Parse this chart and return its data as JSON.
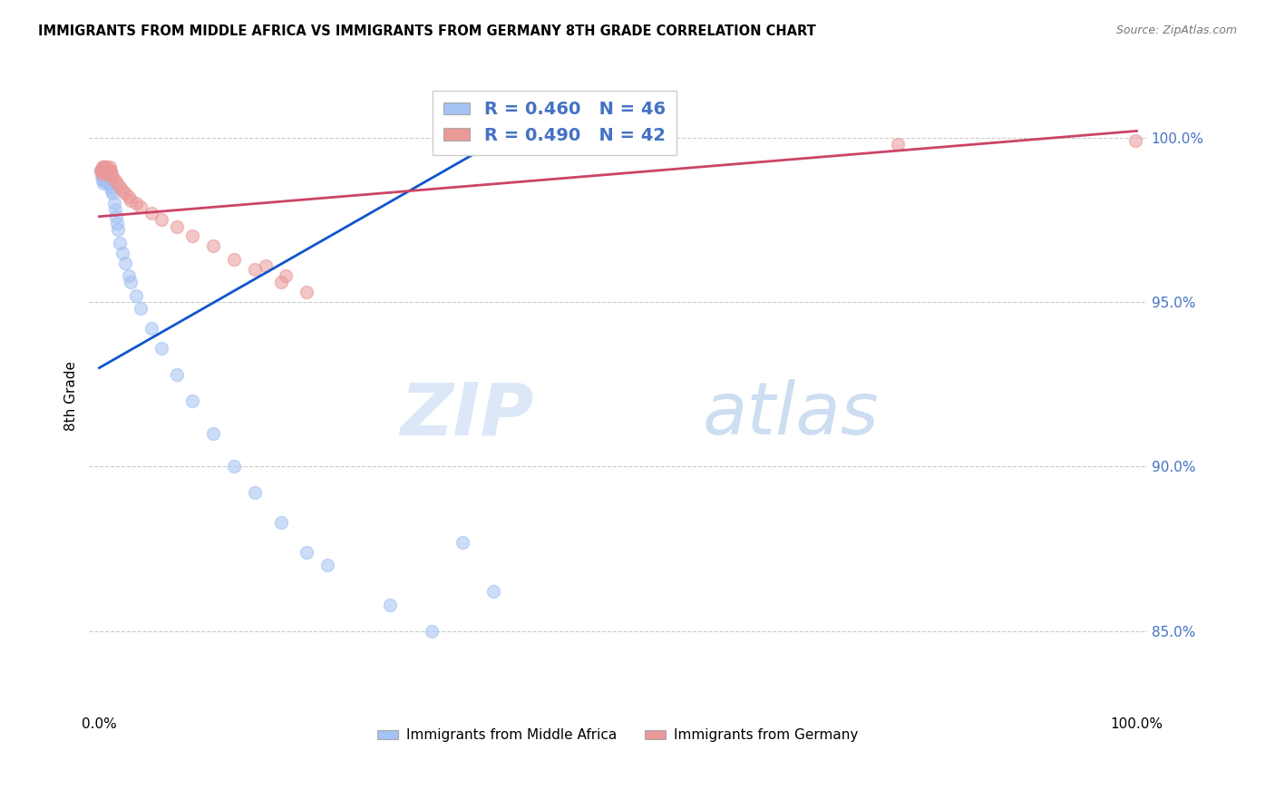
{
  "title": "IMMIGRANTS FROM MIDDLE AFRICA VS IMMIGRANTS FROM GERMANY 8TH GRADE CORRELATION CHART",
  "source": "Source: ZipAtlas.com",
  "ylabel": "8th Grade",
  "y_tick_labels": [
    "85.0%",
    "90.0%",
    "95.0%",
    "100.0%"
  ],
  "y_tick_values": [
    0.85,
    0.9,
    0.95,
    1.0
  ],
  "xlim": [
    -0.01,
    1.01
  ],
  "ylim": [
    0.825,
    1.018
  ],
  "legend_blue_label": "Immigrants from Middle Africa",
  "legend_pink_label": "Immigrants from Germany",
  "R_blue": 0.46,
  "N_blue": 46,
  "R_pink": 0.49,
  "N_pink": 42,
  "blue_color": "#a4c2f4",
  "pink_color": "#ea9999",
  "blue_line_color": "#1155cc",
  "pink_line_color": "#cc4466",
  "blue_scatter_x": [
    0.001,
    0.002,
    0.003,
    0.003,
    0.004,
    0.004,
    0.005,
    0.005,
    0.006,
    0.007,
    0.007,
    0.008,
    0.008,
    0.009,
    0.009,
    0.01,
    0.01,
    0.011,
    0.012,
    0.013,
    0.014,
    0.015,
    0.016,
    0.017,
    0.018,
    0.02,
    0.022,
    0.025,
    0.028,
    0.03,
    0.035,
    0.04,
    0.05,
    0.06,
    0.075,
    0.09,
    0.11,
    0.13,
    0.15,
    0.175,
    0.2,
    0.22,
    0.28,
    0.32,
    0.35,
    0.38
  ],
  "blue_scatter_y": [
    0.99,
    0.988,
    0.987,
    0.989,
    0.986,
    0.988,
    0.987,
    0.989,
    0.988,
    0.987,
    0.988,
    0.986,
    0.988,
    0.987,
    0.989,
    0.986,
    0.988,
    0.985,
    0.984,
    0.983,
    0.98,
    0.978,
    0.976,
    0.974,
    0.972,
    0.968,
    0.965,
    0.962,
    0.958,
    0.956,
    0.952,
    0.948,
    0.942,
    0.936,
    0.928,
    0.92,
    0.91,
    0.9,
    0.892,
    0.883,
    0.874,
    0.87,
    0.858,
    0.85,
    0.877,
    0.862
  ],
  "pink_scatter_x": [
    0.001,
    0.002,
    0.003,
    0.003,
    0.004,
    0.004,
    0.005,
    0.005,
    0.006,
    0.006,
    0.007,
    0.007,
    0.008,
    0.008,
    0.009,
    0.01,
    0.01,
    0.011,
    0.012,
    0.013,
    0.015,
    0.017,
    0.02,
    0.022,
    0.025,
    0.028,
    0.03,
    0.035,
    0.04,
    0.05,
    0.06,
    0.075,
    0.09,
    0.11,
    0.13,
    0.15,
    0.175,
    0.2,
    0.18,
    0.16,
    0.77,
    0.999
  ],
  "pink_scatter_y": [
    0.99,
    0.99,
    0.991,
    0.989,
    0.99,
    0.991,
    0.99,
    0.991,
    0.99,
    0.991,
    0.99,
    0.991,
    0.99,
    0.989,
    0.99,
    0.99,
    0.991,
    0.99,
    0.989,
    0.988,
    0.987,
    0.986,
    0.985,
    0.984,
    0.983,
    0.982,
    0.981,
    0.98,
    0.979,
    0.977,
    0.975,
    0.973,
    0.97,
    0.967,
    0.963,
    0.96,
    0.956,
    0.953,
    0.958,
    0.961,
    0.998,
    0.999
  ],
  "blue_line_x0": 0.0,
  "blue_line_y0": 0.93,
  "blue_line_x1": 0.4,
  "blue_line_y1": 1.002,
  "pink_line_x0": 0.0,
  "pink_line_y0": 0.976,
  "pink_line_x1": 1.0,
  "pink_line_y1": 1.002
}
